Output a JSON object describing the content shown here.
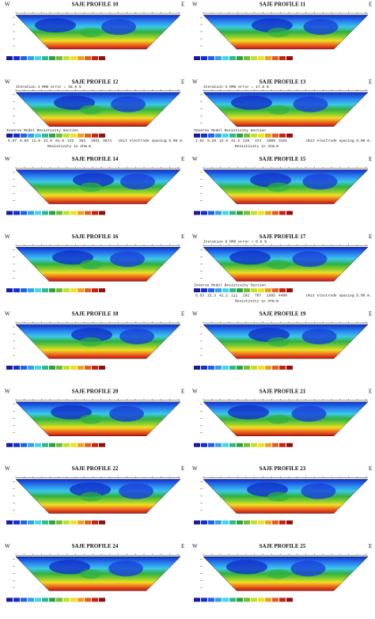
{
  "panels": [
    {
      "title": "SAJE PROFILE 10",
      "west": "W",
      "east": "E"
    },
    {
      "title": "SAJE PROFILE 11",
      "west": "W",
      "east": "E"
    },
    {
      "title": "SAJE PROFILE 12",
      "west": "W",
      "east": "E",
      "iteration": "Iteration 4 RMS error = 16.9 %",
      "section": "Inverse Model Resistivity Section",
      "scale": [
        "5.57",
        "6.66",
        "11.0",
        "21.0",
        "61.8",
        "122",
        "261",
        "1021",
        "3574"
      ],
      "units": "Resistivity in ohm.m",
      "spacing": "Unit electrode spacing 5.00 m."
    },
    {
      "title": "SAJE PROFILE 13",
      "west": "W",
      "east": "E",
      "iteration": "Iteration 5 RMS error = 17.8 %",
      "section": "Inverse Model Resistivity Section",
      "scale": [
        "1.81",
        "5.26",
        "12.9",
        "44.3",
        "120",
        "374",
        "1085",
        "3151"
      ],
      "units": "Resistivity in ohm.m",
      "spacing": "Unit electrode spacing 5.00 m."
    },
    {
      "title": "SAJE PROFILE 14",
      "west": "W",
      "east": "E"
    },
    {
      "title": "SAJE PROFILE 15",
      "west": "W",
      "east": "E"
    },
    {
      "title": "SAJE PROFILE 16",
      "west": "W",
      "east": "E"
    },
    {
      "title": "SAJE PROFILE 17",
      "west": "W",
      "east": "E",
      "iteration": "Iteration 8 RMS error = 6.6 %",
      "section": "Inverse Model Resistivity Section",
      "scale": [
        "6.53",
        "15.3",
        "42.2",
        "111",
        "292",
        "767",
        "1985",
        "4400"
      ],
      "units": "Resistivity in ohm.m",
      "spacing": "Unit electrode spacing 5.00 m."
    },
    {
      "title": "SAJE PROFILE 18",
      "west": "W",
      "east": "E"
    },
    {
      "title": "SAJE PROFILE 19",
      "west": "W",
      "east": "E"
    },
    {
      "title": "SAJE PROFILE 20",
      "west": "W",
      "east": "E"
    },
    {
      "title": "SAJE PROFILE 21",
      "west": "W",
      "east": "E"
    },
    {
      "title": "SAJE PROFILE 22",
      "west": "W",
      "east": "E"
    },
    {
      "title": "SAJE PROFILE 23",
      "west": "W",
      "east": "E"
    },
    {
      "title": "SAJE PROFILE 24",
      "west": "W",
      "east": "E"
    },
    {
      "title": "SAJE PROFILE 25",
      "west": "W",
      "east": "E"
    }
  ]
}
